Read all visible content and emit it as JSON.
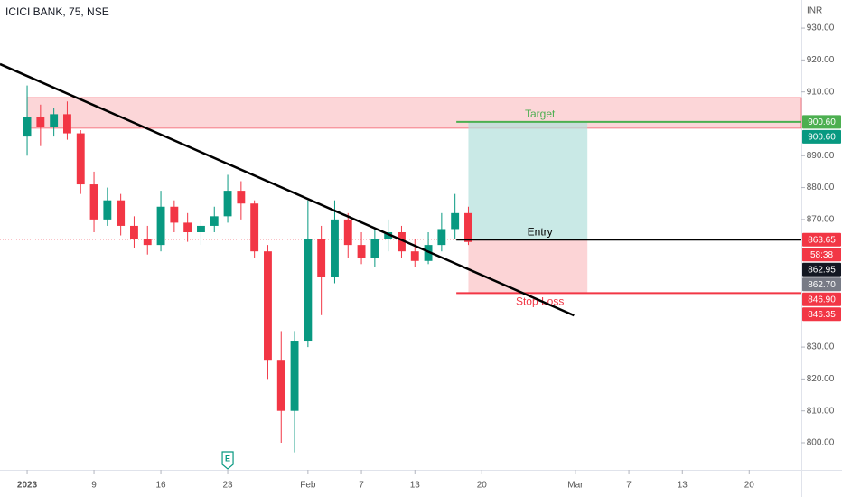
{
  "chart_data": {
    "type": "candlestick",
    "title": "ICICI BANK, 75, NSE",
    "y_axis_label": "INR",
    "up_color": "#089981",
    "down_color": "#f23645",
    "open": [
      896,
      902,
      899,
      903,
      897,
      881,
      870,
      876,
      868,
      864,
      862,
      874,
      869,
      866,
      868,
      871,
      879,
      875,
      860,
      826,
      810,
      832,
      864,
      852,
      870,
      862,
      858,
      864,
      866,
      860,
      857,
      862,
      867,
      872
    ],
    "high": [
      912,
      906,
      905,
      907,
      898,
      885,
      880,
      878,
      871,
      868,
      879,
      876,
      872,
      870,
      874,
      884,
      882,
      876,
      862,
      835,
      835,
      876,
      868,
      876,
      872,
      866,
      867,
      870,
      868,
      864,
      866,
      872,
      878,
      874
    ],
    "low": [
      890,
      893,
      896,
      895,
      878,
      866,
      868,
      865,
      861,
      859,
      860,
      866,
      863,
      862,
      866,
      869,
      870,
      858,
      820,
      800,
      797,
      830,
      840,
      850,
      858,
      856,
      855,
      860,
      858,
      855,
      856,
      860,
      864,
      862
    ],
    "close": [
      902,
      899,
      903,
      897,
      881,
      870,
      876,
      868,
      864,
      862,
      874,
      869,
      866,
      868,
      871,
      879,
      875,
      860,
      826,
      810,
      832,
      864,
      852,
      870,
      862,
      858,
      864,
      866,
      860,
      857,
      862,
      867,
      872,
      862.95
    ],
    "xlim": [
      -2.03,
      57.9
    ],
    "ylim": [
      791.5,
      938.8
    ],
    "xticks": [
      {
        "value": 0,
        "label": "2023"
      },
      {
        "value": 5,
        "label": "9"
      },
      {
        "value": 10,
        "label": "16"
      },
      {
        "value": 15,
        "label": "23"
      },
      {
        "value": 21,
        "label": "Feb"
      },
      {
        "value": 25,
        "label": "7"
      },
      {
        "value": 29,
        "label": "13"
      },
      {
        "value": 34,
        "label": "20"
      },
      {
        "value": 41,
        "label": "Mar"
      },
      {
        "value": 45,
        "label": "7"
      },
      {
        "value": 49,
        "label": "13"
      },
      {
        "value": 54,
        "label": "20"
      }
    ],
    "yticks": [
      {
        "value": 930,
        "label": "930.00"
      },
      {
        "value": 920,
        "label": "920.00"
      },
      {
        "value": 910,
        "label": "910.00"
      },
      {
        "value": 890,
        "label": "890.00"
      },
      {
        "value": 880,
        "label": "880.00"
      },
      {
        "value": 870,
        "label": "870.00"
      },
      {
        "value": 830,
        "label": "830.00"
      },
      {
        "value": 820,
        "label": "820.00"
      },
      {
        "value": 810,
        "label": "810.00"
      },
      {
        "value": 800,
        "label": "800.00"
      }
    ],
    "zone": {
      "low": 898.6,
      "high": 908.2,
      "start": 0,
      "color": "#f8a5a8"
    },
    "trendline": {
      "x": [
        -2.03,
        40.9
      ],
      "y": [
        918.7,
        839.9
      ],
      "color": "#000000"
    },
    "position": {
      "start": 33,
      "end": 41.9,
      "line_start": 32.1,
      "entry": 863.65,
      "target": 900.6,
      "stop": 846.9,
      "entry_label": "Entry",
      "target_label": "Target",
      "stop_label": "Stop Loss"
    },
    "current_price_line": 863.65,
    "price_tags": [
      {
        "value": 900.6,
        "label": "900.60",
        "color": "#4caf50"
      },
      {
        "value": 900.6,
        "label": "900.60",
        "color": "#089981"
      },
      {
        "value": 863.65,
        "label": "863.65",
        "color": "#f23645"
      },
      {
        "value": 862.95,
        "label": "862.95",
        "color": "#131722"
      },
      {
        "value": 862.7,
        "label": "862.70",
        "color": "#787b86"
      },
      {
        "value": 846.9,
        "label": "846.90",
        "color": "#f23645"
      },
      {
        "value": 846.35,
        "label": "846.35",
        "color": "#f23645"
      }
    ],
    "countdown": "58:38",
    "earnings_marker": {
      "x": 15,
      "label": "E"
    }
  }
}
